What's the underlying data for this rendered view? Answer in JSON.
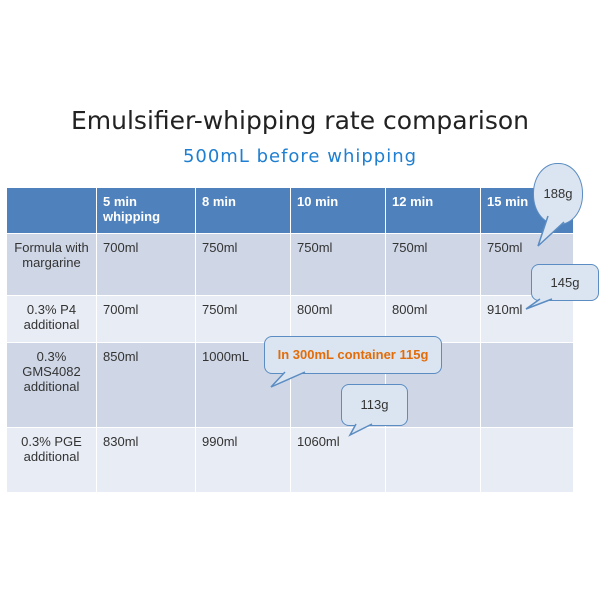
{
  "title": "Emulsifier-whipping rate comparison",
  "subtitle": "500mL before whipping",
  "table": {
    "headers": [
      "",
      "5 min whipping",
      "8  min",
      "10 min",
      "12 min",
      "15 min"
    ],
    "rows": [
      {
        "label": "Formula with margarine",
        "cells": [
          "700ml",
          "750ml",
          "750ml",
          "750ml",
          "750ml"
        ]
      },
      {
        "label": "0.3%  P4 additional",
        "cells": [
          "700ml",
          "750ml",
          "800ml",
          "800ml",
          "910ml"
        ]
      },
      {
        "label": "0.3% GMS4082 additional",
        "cells": [
          "850ml",
          "1000mL",
          "",
          "",
          ""
        ]
      },
      {
        "label": "0.3% PGE additional",
        "cells": [
          "830ml",
          "990ml",
          "1060ml",
          "",
          ""
        ]
      }
    ]
  },
  "callouts": {
    "c188": "188g",
    "c145": "145g",
    "c115": "In 300mL container 115g",
    "c113": "113g"
  },
  "colors": {
    "header_bg": "#4f81bd",
    "row_dark": "#cfd7e7",
    "row_light": "#e8ecf4",
    "subtitle": "#1f7fd0",
    "highlight_red": "#d92b2b",
    "callout_orange": "#e36c09"
  }
}
